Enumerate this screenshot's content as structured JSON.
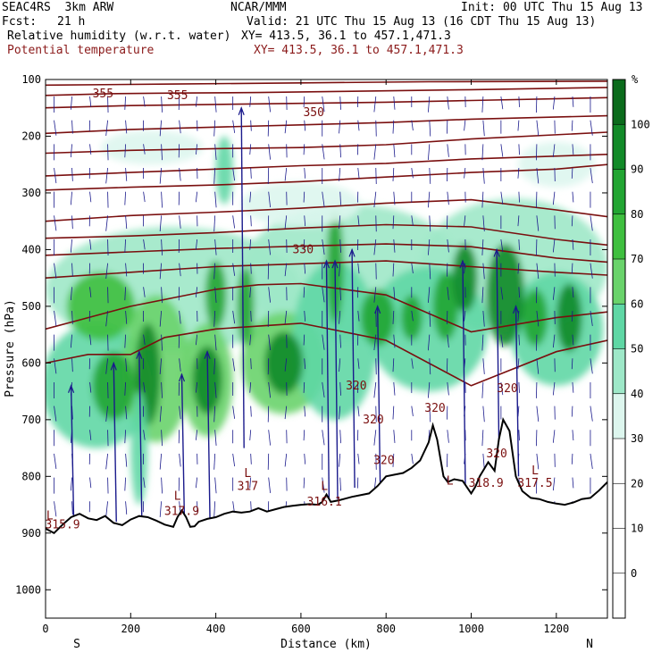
{
  "header": {
    "model": "SEAC4RS  3km ARW",
    "org": "NCAR/MMM",
    "init": "Init: 00 UTC Thu 15 Aug 13",
    "fcst_label": "Fcst:",
    "fcst_value": "21 h",
    "valid": "Valid: 21 UTC Thu 15 Aug 13 (16 CDT Thu 15 Aug 13)",
    "field1": "Relative humidity (w.r.t. water)",
    "field1_xy": "XY= 413.5, 36.1 to 457.1,471.3",
    "field2": "Potential temperature",
    "field2_xy": "XY= 413.5, 36.1 to 457.1,471.3"
  },
  "colors": {
    "terrain": "#000000",
    "theta": "#7a0f0f",
    "wind": "#1a1a8c",
    "frame": "#000000"
  },
  "chart_data": {
    "type": "heatmap",
    "xlabel": "Distance (km)",
    "ylabel": "Pressure (hPa)",
    "xlim": [
      0,
      1320
    ],
    "ylim": [
      1050,
      100
    ],
    "x_ticks": [
      0,
      200,
      400,
      600,
      800,
      1000,
      1200
    ],
    "y_ticks": [
      100,
      200,
      300,
      400,
      500,
      600,
      700,
      800,
      900,
      1000
    ],
    "endpoints": {
      "left": "S",
      "right": "N"
    },
    "colorbar": {
      "unit": "%",
      "ticks": [
        0,
        10,
        20,
        30,
        40,
        50,
        60,
        70,
        80,
        90,
        100
      ],
      "levels": [
        {
          "from": 30,
          "to": 40,
          "color": "#ddf6ee"
        },
        {
          "from": 40,
          "to": 50,
          "color": "#9ee8c8"
        },
        {
          "from": 50,
          "to": 60,
          "color": "#5fd7a5"
        },
        {
          "from": 60,
          "to": 70,
          "color": "#6ad36b"
        },
        {
          "from": 70,
          "to": 80,
          "color": "#3fbf3f"
        },
        {
          "from": 80,
          "to": 90,
          "color": "#22a532"
        },
        {
          "from": 90,
          "to": 100,
          "color": "#128a28"
        },
        {
          "from": 100,
          "to": 110,
          "color": "#0b6b1c"
        }
      ]
    },
    "terrain": [
      [
        0,
        892
      ],
      [
        20,
        900
      ],
      [
        40,
        885
      ],
      [
        60,
        872
      ],
      [
        80,
        866
      ],
      [
        100,
        874
      ],
      [
        120,
        877
      ],
      [
        140,
        870
      ],
      [
        160,
        882
      ],
      [
        180,
        886
      ],
      [
        200,
        876
      ],
      [
        220,
        870
      ],
      [
        240,
        872
      ],
      [
        260,
        878
      ],
      [
        280,
        885
      ],
      [
        300,
        889
      ],
      [
        310,
        872
      ],
      [
        320,
        860
      ],
      [
        330,
        872
      ],
      [
        340,
        889
      ],
      [
        350,
        888
      ],
      [
        360,
        880
      ],
      [
        380,
        875
      ],
      [
        400,
        872
      ],
      [
        420,
        866
      ],
      [
        440,
        862
      ],
      [
        460,
        864
      ],
      [
        480,
        862
      ],
      [
        500,
        856
      ],
      [
        520,
        862
      ],
      [
        540,
        858
      ],
      [
        560,
        854
      ],
      [
        580,
        852
      ],
      [
        600,
        850
      ],
      [
        620,
        849
      ],
      [
        640,
        850
      ],
      [
        650,
        845
      ],
      [
        660,
        832
      ],
      [
        670,
        845
      ],
      [
        690,
        842
      ],
      [
        720,
        836
      ],
      [
        760,
        830
      ],
      [
        780,
        817
      ],
      [
        800,
        800
      ],
      [
        820,
        797
      ],
      [
        840,
        794
      ],
      [
        860,
        785
      ],
      [
        880,
        772
      ],
      [
        900,
        740
      ],
      [
        910,
        710
      ],
      [
        920,
        735
      ],
      [
        935,
        800
      ],
      [
        945,
        810
      ],
      [
        960,
        805
      ],
      [
        980,
        808
      ],
      [
        1000,
        830
      ],
      [
        1010,
        818
      ],
      [
        1020,
        800
      ],
      [
        1040,
        775
      ],
      [
        1055,
        790
      ],
      [
        1065,
        735
      ],
      [
        1075,
        700
      ],
      [
        1090,
        720
      ],
      [
        1105,
        800
      ],
      [
        1120,
        826
      ],
      [
        1140,
        838
      ],
      [
        1160,
        840
      ],
      [
        1180,
        845
      ],
      [
        1200,
        848
      ],
      [
        1220,
        850
      ],
      [
        1240,
        846
      ],
      [
        1260,
        840
      ],
      [
        1280,
        838
      ],
      [
        1300,
        825
      ],
      [
        1320,
        810
      ]
    ],
    "humidity_blobs": [
      {
        "x": 300,
        "p": 470,
        "rx": 300,
        "rp": 110,
        "value": 45
      },
      {
        "x": 720,
        "p": 440,
        "rx": 260,
        "rp": 120,
        "value": 40
      },
      {
        "x": 1100,
        "p": 430,
        "rx": 220,
        "rp": 120,
        "value": 42
      },
      {
        "x": 120,
        "p": 640,
        "rx": 130,
        "rp": 110,
        "value": 55
      },
      {
        "x": 260,
        "p": 610,
        "rx": 80,
        "rp": 130,
        "value": 65
      },
      {
        "x": 380,
        "p": 630,
        "rx": 60,
        "rp": 100,
        "value": 60
      },
      {
        "x": 560,
        "p": 600,
        "rx": 100,
        "rp": 90,
        "value": 60
      },
      {
        "x": 680,
        "p": 560,
        "rx": 100,
        "rp": 140,
        "value": 55
      },
      {
        "x": 900,
        "p": 540,
        "rx": 140,
        "rp": 110,
        "value": 50
      },
      {
        "x": 1200,
        "p": 540,
        "rx": 110,
        "rp": 100,
        "value": 55
      },
      {
        "x": 130,
        "p": 500,
        "rx": 80,
        "rp": 60,
        "value": 70
      },
      {
        "x": 160,
        "p": 640,
        "rx": 50,
        "rp": 60,
        "value": 80
      },
      {
        "x": 240,
        "p": 620,
        "rx": 30,
        "rp": 90,
        "value": 95
      },
      {
        "x": 380,
        "p": 630,
        "rx": 35,
        "rp": 60,
        "value": 90
      },
      {
        "x": 400,
        "p": 480,
        "rx": 25,
        "rp": 60,
        "value": 80
      },
      {
        "x": 470,
        "p": 500,
        "rx": 20,
        "rp": 70,
        "value": 80
      },
      {
        "x": 560,
        "p": 600,
        "rx": 45,
        "rp": 55,
        "value": 90
      },
      {
        "x": 680,
        "p": 430,
        "rx": 20,
        "rp": 100,
        "value": 85
      },
      {
        "x": 780,
        "p": 520,
        "rx": 40,
        "rp": 50,
        "value": 85
      },
      {
        "x": 860,
        "p": 520,
        "rx": 25,
        "rp": 40,
        "value": 80
      },
      {
        "x": 940,
        "p": 500,
        "rx": 30,
        "rp": 60,
        "value": 80
      },
      {
        "x": 985,
        "p": 450,
        "rx": 30,
        "rp": 60,
        "value": 95
      },
      {
        "x": 1080,
        "p": 480,
        "rx": 45,
        "rp": 90,
        "value": 95
      },
      {
        "x": 1150,
        "p": 520,
        "rx": 30,
        "rp": 50,
        "value": 80
      },
      {
        "x": 1230,
        "p": 520,
        "rx": 30,
        "rp": 60,
        "value": 90
      },
      {
        "x": 220,
        "p": 750,
        "rx": 20,
        "rp": 100,
        "value": 50
      },
      {
        "x": 600,
        "p": 320,
        "rx": 140,
        "rp": 40,
        "value": 35
      },
      {
        "x": 250,
        "p": 220,
        "rx": 120,
        "rp": 30,
        "value": 35
      },
      {
        "x": 1200,
        "p": 250,
        "rx": 90,
        "rp": 40,
        "value": 35
      },
      {
        "x": 420,
        "p": 260,
        "rx": 20,
        "rp": 60,
        "value": 50
      }
    ],
    "theta_contours": [
      {
        "value": 360,
        "points": [
          [
            0,
            110
          ],
          [
            300,
            108
          ],
          [
            600,
            106
          ],
          [
            900,
            104
          ],
          [
            1320,
            103
          ]
        ]
      },
      {
        "value": 355,
        "points": [
          [
            0,
            128
          ],
          [
            150,
            125
          ],
          [
            300,
            124
          ],
          [
            500,
            123
          ],
          [
            700,
            121
          ],
          [
            1000,
            118
          ],
          [
            1320,
            114
          ]
        ]
      },
      {
        "value": 352,
        "points": [
          [
            0,
            150
          ],
          [
            200,
            146
          ],
          [
            400,
            144
          ],
          [
            600,
            142
          ],
          [
            800,
            140
          ],
          [
            1000,
            137
          ],
          [
            1320,
            132
          ]
        ]
      },
      {
        "value": 350,
        "points": [
          [
            0,
            195
          ],
          [
            200,
            188
          ],
          [
            400,
            184
          ],
          [
            600,
            180
          ],
          [
            800,
            176
          ],
          [
            1000,
            170
          ],
          [
            1320,
            164
          ]
        ]
      },
      {
        "value": 345,
        "points": [
          [
            0,
            230
          ],
          [
            200,
            225
          ],
          [
            400,
            222
          ],
          [
            600,
            220
          ],
          [
            800,
            215
          ],
          [
            1000,
            205
          ],
          [
            1320,
            193
          ]
        ]
      },
      {
        "value": 340,
        "points": [
          [
            0,
            270
          ],
          [
            200,
            264
          ],
          [
            400,
            258
          ],
          [
            600,
            252
          ],
          [
            800,
            248
          ],
          [
            1000,
            240
          ],
          [
            1320,
            232
          ]
        ]
      },
      {
        "value": 338,
        "points": [
          [
            0,
            295
          ],
          [
            200,
            290
          ],
          [
            400,
            286
          ],
          [
            600,
            280
          ],
          [
            800,
            272
          ],
          [
            1000,
            264
          ],
          [
            1200,
            258
          ],
          [
            1320,
            250
          ]
        ]
      },
      {
        "value": 335,
        "points": [
          [
            0,
            350
          ],
          [
            200,
            340
          ],
          [
            400,
            334
          ],
          [
            600,
            327
          ],
          [
            800,
            318
          ],
          [
            1000,
            312
          ],
          [
            1200,
            330
          ],
          [
            1320,
            342
          ]
        ]
      },
      {
        "value": 332,
        "points": [
          [
            0,
            380
          ],
          [
            200,
            376
          ],
          [
            400,
            370
          ],
          [
            600,
            362
          ],
          [
            800,
            356
          ],
          [
            1000,
            360
          ],
          [
            1200,
            382
          ],
          [
            1320,
            392
          ]
        ]
      },
      {
        "value": 330,
        "points": [
          [
            0,
            410
          ],
          [
            200,
            404
          ],
          [
            400,
            398
          ],
          [
            600,
            394
          ],
          [
            800,
            390
          ],
          [
            1000,
            395
          ],
          [
            1200,
            415
          ],
          [
            1320,
            422
          ]
        ]
      },
      {
        "value": 328,
        "points": [
          [
            0,
            450
          ],
          [
            200,
            440
          ],
          [
            400,
            430
          ],
          [
            600,
            425
          ],
          [
            800,
            420
          ],
          [
            1000,
            430
          ],
          [
            1200,
            440
          ],
          [
            1320,
            445
          ]
        ]
      },
      {
        "value": 325,
        "points": [
          [
            0,
            540
          ],
          [
            100,
            520
          ],
          [
            200,
            500
          ],
          [
            300,
            485
          ],
          [
            400,
            470
          ],
          [
            500,
            462
          ],
          [
            600,
            460
          ],
          [
            800,
            480
          ],
          [
            1000,
            545
          ],
          [
            1200,
            520
          ],
          [
            1320,
            510
          ]
        ]
      },
      {
        "value": 322,
        "points": [
          [
            0,
            600
          ],
          [
            100,
            585
          ],
          [
            200,
            585
          ],
          [
            280,
            555
          ],
          [
            400,
            540
          ],
          [
            500,
            535
          ],
          [
            600,
            530
          ],
          [
            800,
            560
          ],
          [
            1000,
            640
          ],
          [
            1200,
            580
          ],
          [
            1320,
            560
          ]
        ]
      }
    ],
    "contour_labels": [
      {
        "text": "355",
        "x": 135,
        "p": 125
      },
      {
        "text": "355",
        "x": 310,
        "p": 128
      },
      {
        "text": "350",
        "x": 630,
        "p": 158
      },
      {
        "text": "330",
        "x": 605,
        "p": 400
      },
      {
        "text": "320",
        "x": 730,
        "p": 640
      },
      {
        "text": "320",
        "x": 770,
        "p": 700
      },
      {
        "text": "320",
        "x": 915,
        "p": 680
      },
      {
        "text": "320",
        "x": 1085,
        "p": 645
      },
      {
        "text": "320",
        "x": 1060,
        "p": 760
      }
    ],
    "low_markers": [
      {
        "text": "L",
        "value": "315.9",
        "x": 10,
        "p": 870,
        "val_x": 40,
        "val_p": 885
      },
      {
        "text": "L",
        "value": "317.9",
        "x": 310,
        "p": 835,
        "val_x": 320,
        "val_p": 862
      },
      {
        "text": "L",
        "value": "317",
        "x": 475,
        "p": 795,
        "val_x": 475,
        "val_p": 818
      },
      {
        "text": "L",
        "value": "316.1",
        "x": 655,
        "p": 818,
        "val_x": 655,
        "val_p": 845
      },
      {
        "text": "L",
        "value": "318.9",
        "x": 950,
        "p": 808,
        "val_x": 1035,
        "val_p": 812
      },
      {
        "text": "L",
        "value": "317.5",
        "x": 1150,
        "p": 790,
        "val_x": 1150,
        "val_p": 812
      }
    ],
    "extra_labels": [
      {
        "text": "320",
        "x": 795,
        "p": 772
      }
    ],
    "strong_winds": [
      {
        "x": 60,
        "p": 640,
        "dp": 240
      },
      {
        "x": 160,
        "p": 600,
        "dp": 280
      },
      {
        "x": 220,
        "p": 580,
        "dp": 300
      },
      {
        "x": 320,
        "p": 620,
        "dp": 260
      },
      {
        "x": 380,
        "p": 580,
        "dp": 300
      },
      {
        "x": 460,
        "p": 150,
        "dp": 600
      },
      {
        "x": 660,
        "p": 420,
        "dp": 440
      },
      {
        "x": 680,
        "p": 420,
        "dp": 420
      },
      {
        "x": 720,
        "p": 400,
        "dp": 420
      },
      {
        "x": 780,
        "p": 500,
        "dp": 320
      },
      {
        "x": 980,
        "p": 420,
        "dp": 400
      },
      {
        "x": 1060,
        "p": 400,
        "dp": 420
      },
      {
        "x": 1105,
        "p": 500,
        "dp": 300
      }
    ]
  }
}
